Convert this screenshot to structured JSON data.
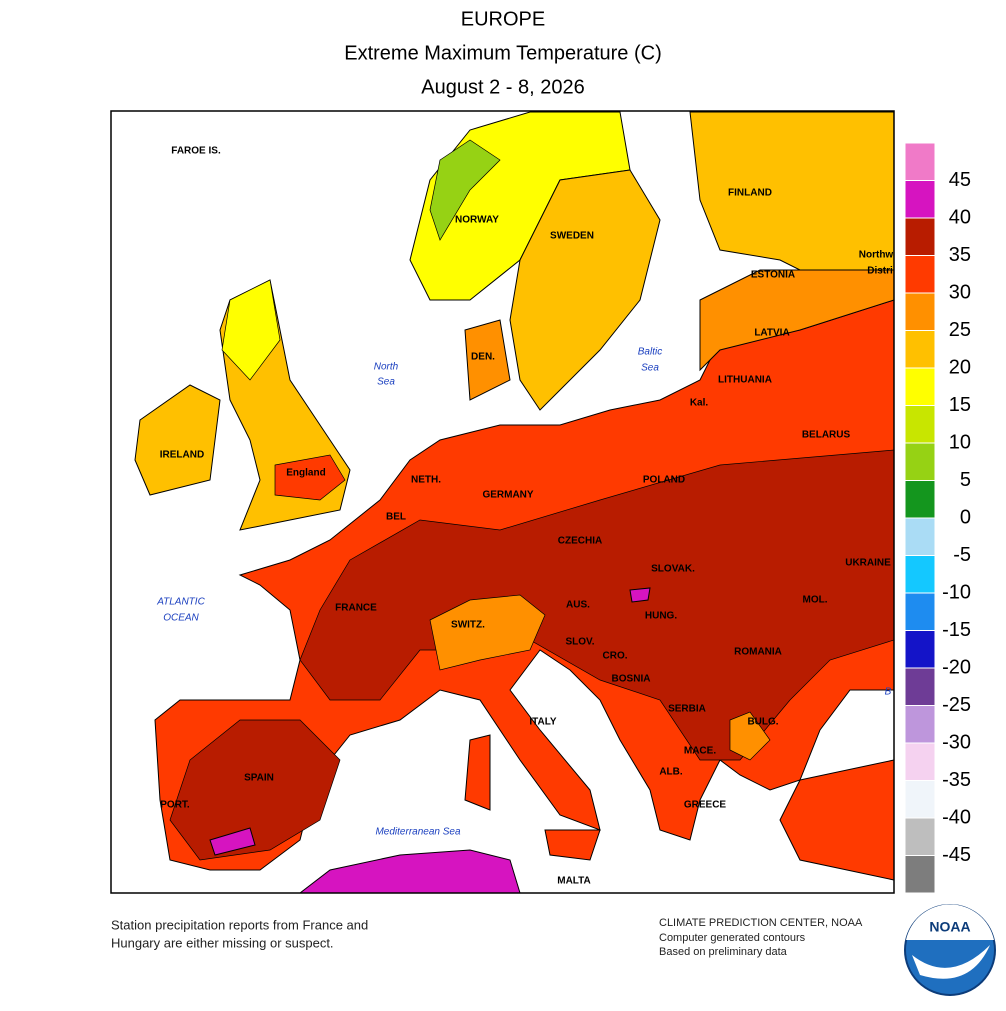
{
  "header": {
    "region": "EUROPE",
    "title": "Extreme Maximum Temperature (C)",
    "dates": "August 2 - 8, 2026"
  },
  "map": {
    "labels": [
      "FAROE IS.",
      "NORWAY",
      "SWEDEN",
      "FINLAND",
      "Northw",
      "Distri",
      "ESTONIA",
      "LATVIA",
      "LITHUANIA",
      "Kal.",
      "BELARUS",
      "DEN.",
      "IRELAND",
      "England",
      "NETH.",
      "GERMANY",
      "POLAND",
      "BEL",
      "CZECHIA",
      "SLOVAK.",
      "UKRAINE",
      "FRANCE",
      "SWITZ.",
      "AUS.",
      "HUNG.",
      "MOL.",
      "SLOV.",
      "CRO.",
      "ROMANIA",
      "BOSNIA",
      "SERBIA",
      "BULG.",
      "ITALY",
      "MACE.",
      "ALB.",
      "SPAIN",
      "PORT.",
      "GREECE",
      "MALTA"
    ],
    "seas": [
      "North",
      "Sea",
      "Baltic",
      "Sea",
      "ATLANTIC",
      "OCEAN",
      "Mediterranean Sea",
      "B"
    ]
  },
  "legend": {
    "ticks": [
      45,
      40,
      35,
      30,
      25,
      20,
      15,
      10,
      5,
      0,
      -5,
      -10,
      -15,
      -20,
      -25,
      -30,
      -35,
      -40,
      -45
    ],
    "colors": [
      "#f07ac8",
      "#d614c0",
      "#b81c00",
      "#ff3a00",
      "#ff9000",
      "#ffc000",
      "#ffff00",
      "#c8e600",
      "#96d214",
      "#14961e",
      "#aadcf5",
      "#14c8ff",
      "#1e8cf0",
      "#1414c8",
      "#6e3c96",
      "#be96dc",
      "#f5d2f0",
      "#f0f5fa",
      "#bebebe",
      "#7d7d7d"
    ]
  },
  "footer": {
    "note": [
      "Station precipitation reports from France and",
      "Hungary are either missing or suspect."
    ],
    "credit": [
      "CLIMATE PREDICTION CENTER, NOAA",
      "Computer generated contours",
      "Based on preliminary data"
    ],
    "logo": "NOAA"
  }
}
